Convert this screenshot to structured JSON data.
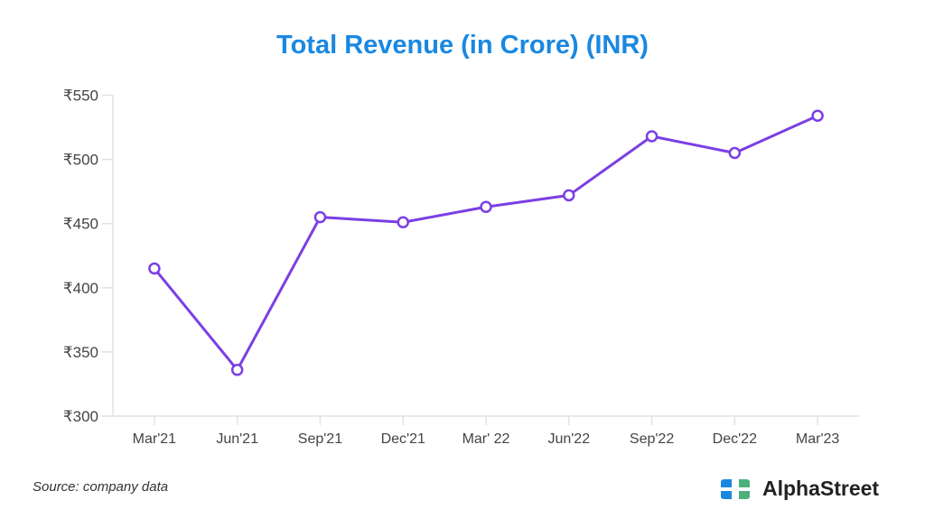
{
  "chart_data": {
    "type": "line",
    "title": "Total Revenue (in Crore) (INR)",
    "xlabel": "",
    "ylabel": "",
    "categories": [
      "Mar'21",
      "Jun'21",
      "Sep'21",
      "Dec'21",
      "Mar' 22",
      "Jun'22",
      "Sep'22",
      "Dec'22",
      "Mar'23"
    ],
    "series": [
      {
        "name": "Total Revenue",
        "values": [
          415,
          336,
          455,
          451,
          463,
          472,
          518,
          505,
          534
        ]
      }
    ],
    "ylim": [
      300,
      550
    ],
    "yticks": [
      300,
      350,
      400,
      450,
      500,
      550
    ],
    "ytick_labels": [
      "₹300",
      "₹350",
      "₹400",
      "₹450",
      "₹500",
      "₹550"
    ],
    "grid": false,
    "line_color": "#7b3fe4"
  },
  "footer": {
    "source": "Source: company data",
    "brand": "AlphaStreet"
  }
}
